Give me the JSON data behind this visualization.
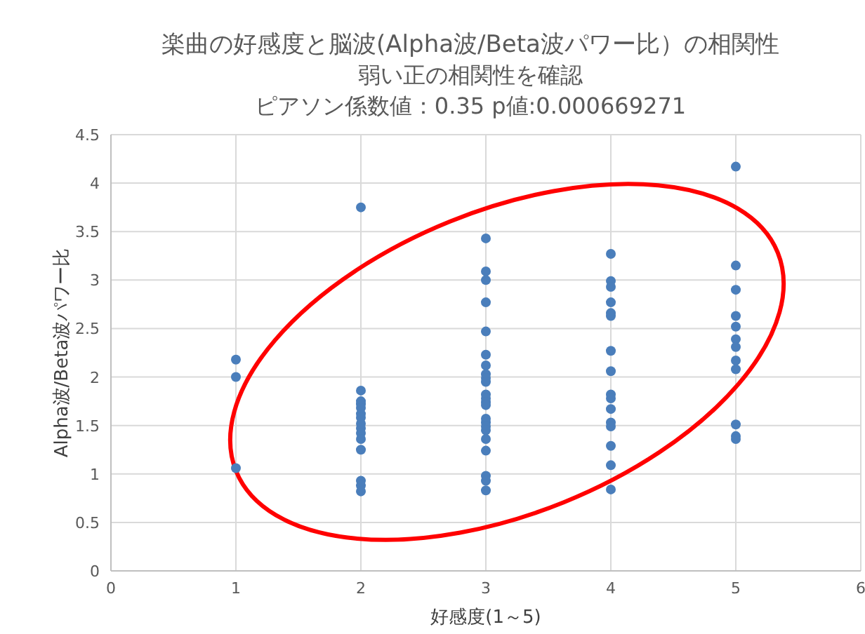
{
  "chart_data": {
    "type": "scatter",
    "title": "楽曲の好感度と脳波(Alpha波/Beta波パワー比）の相関性",
    "subtitle": "弱い正の相関性を確認",
    "annotations": [
      "ピアソン係数値：0.35  p値:0.000669271"
    ],
    "xlabel": "好感度(1～5)",
    "ylabel": "Alpha波/Beta波パワー比",
    "xlim": [
      0,
      6
    ],
    "xticks": [
      0,
      1,
      2,
      3,
      4,
      5,
      6
    ],
    "ylim": [
      0,
      4.5
    ],
    "yticks": [
      0,
      0.5,
      1,
      1.5,
      2,
      2.5,
      3,
      3.5,
      4,
      4.5
    ],
    "grid": true,
    "marker": "circle",
    "series": [
      {
        "color": "#4a7ebb",
        "x": [
          1,
          1,
          1,
          2,
          2,
          2,
          2,
          2,
          2,
          2,
          2,
          2,
          2,
          2,
          2,
          2,
          2,
          2,
          3,
          3,
          3,
          3,
          3,
          3,
          3,
          3,
          3,
          3,
          3,
          3,
          3,
          3,
          3,
          3,
          3,
          3,
          3,
          3,
          3,
          3,
          3,
          4,
          4,
          4,
          4,
          4,
          4,
          4,
          4,
          4,
          4,
          4,
          4,
          4,
          4,
          4,
          4,
          5,
          5,
          5,
          5,
          5,
          5,
          5,
          5,
          5,
          5,
          5,
          5
        ],
        "values": [
          2.18,
          2.0,
          1.06,
          3.75,
          1.86,
          1.75,
          1.72,
          1.68,
          1.62,
          1.58,
          1.52,
          1.47,
          1.42,
          1.36,
          1.25,
          0.93,
          0.88,
          0.82,
          3.43,
          3.09,
          3.0,
          2.77,
          2.47,
          2.23,
          2.12,
          2.03,
          1.99,
          1.95,
          1.82,
          1.78,
          1.74,
          1.71,
          1.57,
          1.53,
          1.49,
          1.45,
          1.36,
          1.24,
          0.98,
          0.93,
          0.83,
          3.27,
          2.99,
          2.93,
          2.77,
          2.66,
          2.63,
          2.27,
          2.06,
          1.82,
          1.78,
          1.67,
          1.53,
          1.49,
          1.29,
          1.09,
          0.84,
          4.17,
          3.15,
          2.9,
          2.63,
          2.52,
          2.39,
          2.31,
          2.17,
          2.08,
          1.51,
          1.39,
          1.36
        ]
      }
    ]
  }
}
